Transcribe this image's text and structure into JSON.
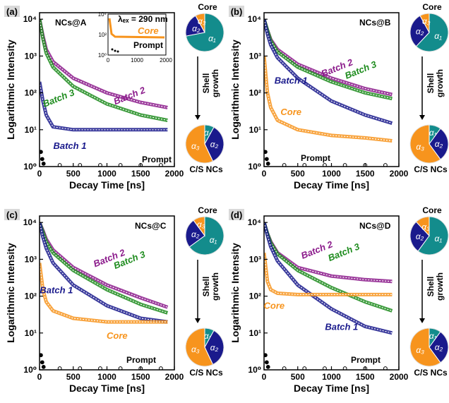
{
  "colors": {
    "core": "#F7941D",
    "batch1": "#1A1A8C",
    "batch2": "#8B1A8B",
    "batch3": "#1E8C1E",
    "prompt": "#000000",
    "teal": "#138C8C",
    "navy": "#1A1A8C",
    "orange": "#F7941D"
  },
  "common": {
    "ylabel": "Logarithmic Intensity",
    "xlabel": "Decay Time [ns]",
    "xticks": [
      "0",
      "500",
      "1000",
      "1500",
      "2000"
    ],
    "yticks": [
      "10⁰",
      "10¹",
      "10²",
      "10³",
      "10⁴"
    ],
    "pie_top_label": "Core",
    "pie_bottom_label": "C/S NCs",
    "shell_label_1": "Shell",
    "shell_label_2": "growth",
    "alpha1": "α₁",
    "alpha2": "α₂",
    "alpha3": "α₃"
  },
  "inset": {
    "label": "λₑₓ = 290 nm",
    "xticks": [
      "0",
      "1000",
      "2000"
    ],
    "yticks": [
      "10⁰",
      "10²",
      "10⁴"
    ],
    "core_label": "Core",
    "prompt_label": "Prompt"
  },
  "chart_data": [
    {
      "type": "line",
      "panel": "(a)",
      "title": "NCs@A",
      "xlabel": "Decay Time [ns]",
      "ylabel": "Logarithmic Intensity",
      "xlim": [
        0,
        2000
      ],
      "ylim": [
        1,
        15000
      ],
      "y_scale": "log",
      "series": [
        {
          "name": "Batch 2",
          "x": [
            0,
            50,
            100,
            200,
            500,
            1000,
            1500,
            1900
          ],
          "y": [
            10000,
            3500,
            1500,
            700,
            250,
            100,
            55,
            40
          ]
        },
        {
          "name": "Batch 3",
          "x": [
            0,
            50,
            100,
            200,
            500,
            1000,
            1500,
            1900
          ],
          "y": [
            10000,
            3000,
            1200,
            500,
            150,
            50,
            25,
            18
          ]
        },
        {
          "name": "Batch 1",
          "x": [
            0,
            50,
            100,
            200,
            500,
            1000,
            1500,
            1900
          ],
          "y": [
            200,
            60,
            25,
            12,
            10,
            10,
            10,
            10
          ]
        },
        {
          "name": "Prompt"
        }
      ],
      "pie_core": {
        "alpha1": 0.72,
        "alpha2": 0.2,
        "alpha3": 0.08
      },
      "pie_cs": {
        "alpha1": 0.08,
        "alpha2": 0.35,
        "alpha3": 0.57
      }
    },
    {
      "type": "line",
      "panel": "(b)",
      "title": "NCs@B",
      "xlabel": "Decay Time [ns]",
      "ylabel": "Logarithmic Intensity",
      "xlim": [
        0,
        2000
      ],
      "ylim": [
        1,
        15000
      ],
      "y_scale": "log",
      "series": [
        {
          "name": "Batch 2",
          "x": [
            0,
            50,
            100,
            200,
            500,
            1000,
            1500,
            1900
          ],
          "y": [
            10000,
            5000,
            2800,
            1500,
            600,
            250,
            130,
            90
          ]
        },
        {
          "name": "Batch 3",
          "x": [
            0,
            50,
            100,
            200,
            500,
            1000,
            1500,
            1900
          ],
          "y": [
            10000,
            5000,
            2600,
            1300,
            500,
            200,
            100,
            70
          ]
        },
        {
          "name": "Batch 1",
          "x": [
            0,
            50,
            100,
            200,
            500,
            1000,
            1500,
            1900
          ],
          "y": [
            10000,
            4000,
            2000,
            900,
            250,
            60,
            25,
            15
          ]
        },
        {
          "name": "Core",
          "x": [
            0,
            50,
            100,
            200,
            500,
            1000,
            1500,
            1900
          ],
          "y": [
            1000,
            100,
            40,
            18,
            10,
            7,
            6,
            5
          ]
        },
        {
          "name": "Prompt"
        }
      ],
      "pie_core": {
        "alpha1": 0.62,
        "alpha2": 0.3,
        "alpha3": 0.08
      },
      "pie_cs": {
        "alpha1": 0.1,
        "alpha2": 0.3,
        "alpha3": 0.6
      }
    },
    {
      "type": "line",
      "panel": "(c)",
      "title": "NCs@C",
      "xlabel": "Decay Time [ns]",
      "ylabel": "Logarithmic Intensity",
      "xlim": [
        0,
        2000
      ],
      "ylim": [
        1,
        15000
      ],
      "y_scale": "log",
      "series": [
        {
          "name": "Batch 2",
          "x": [
            0,
            50,
            100,
            200,
            500,
            1000,
            1500,
            1900
          ],
          "y": [
            10000,
            6000,
            3500,
            1800,
            600,
            200,
            90,
            50
          ]
        },
        {
          "name": "Batch 3",
          "x": [
            0,
            50,
            100,
            200,
            500,
            1000,
            1500,
            1900
          ],
          "y": [
            10000,
            5500,
            3000,
            1500,
            500,
            150,
            60,
            35
          ]
        },
        {
          "name": "Batch 1",
          "x": [
            0,
            50,
            100,
            200,
            500,
            1000,
            1500,
            1900
          ],
          "y": [
            10000,
            4000,
            2000,
            800,
            200,
            55,
            25,
            20
          ]
        },
        {
          "name": "Core",
          "x": [
            0,
            50,
            100,
            200,
            500,
            1000,
            1500,
            1900
          ],
          "y": [
            800,
            150,
            70,
            40,
            25,
            20,
            20,
            20
          ]
        },
        {
          "name": "Prompt"
        }
      ],
      "pie_core": {
        "alpha1": 0.65,
        "alpha2": 0.25,
        "alpha3": 0.1
      },
      "pie_cs": {
        "alpha1": 0.08,
        "alpha2": 0.35,
        "alpha3": 0.57
      }
    },
    {
      "type": "line",
      "panel": "(d)",
      "title": "NCs@D",
      "xlabel": "Decay Time [ns]",
      "ylabel": "Logarithmic Intensity",
      "xlim": [
        0,
        2000
      ],
      "ylim": [
        1,
        15000
      ],
      "y_scale": "log",
      "series": [
        {
          "name": "Batch 2",
          "x": [
            0,
            50,
            100,
            200,
            500,
            1000,
            1500,
            1900
          ],
          "y": [
            10000,
            5000,
            3000,
            1500,
            600,
            350,
            280,
            250
          ]
        },
        {
          "name": "Batch 3",
          "x": [
            0,
            50,
            100,
            200,
            500,
            1000,
            1500,
            1900
          ],
          "y": [
            10000,
            5000,
            2800,
            1400,
            500,
            170,
            70,
            40
          ]
        },
        {
          "name": "Batch 1",
          "x": [
            0,
            50,
            100,
            200,
            500,
            1000,
            1500,
            1900
          ],
          "y": [
            10000,
            4500,
            2200,
            900,
            200,
            45,
            15,
            10
          ]
        },
        {
          "name": "Core",
          "x": [
            0,
            50,
            100,
            200,
            500,
            1000,
            1500,
            1900
          ],
          "y": [
            1500,
            250,
            150,
            120,
            110,
            110,
            110,
            110
          ]
        },
        {
          "name": "Prompt"
        }
      ],
      "pie_core": {
        "alpha1": 0.6,
        "alpha2": 0.28,
        "alpha3": 0.12
      },
      "pie_cs": {
        "alpha1": 0.1,
        "alpha2": 0.3,
        "alpha3": 0.6
      }
    }
  ]
}
